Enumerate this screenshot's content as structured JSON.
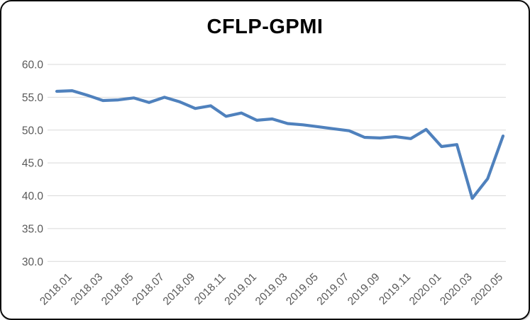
{
  "card": {
    "background": "#ffffff",
    "border_color": "#0a0a0a"
  },
  "chart_data": {
    "type": "line",
    "title": "CFLP-GPMI",
    "xlabel": "",
    "ylabel": "",
    "x": [
      "2018.01",
      "2018.02",
      "2018.03",
      "2018.04",
      "2018.05",
      "2018.06",
      "2018.07",
      "2018.08",
      "2018.09",
      "2018.10",
      "2018.11",
      "2018.12",
      "2019.01",
      "2019.02",
      "2019.03",
      "2019.04",
      "2019.05",
      "2019.06",
      "2019.07",
      "2019.08",
      "2019.09",
      "2019.10",
      "2019.11",
      "2019.12",
      "2020.01",
      "2020.02",
      "2020.03",
      "2020.04",
      "2020.05",
      "2020.06"
    ],
    "x_tick_step": 2,
    "series": [
      {
        "name": "CFLP-GPMI",
        "color": "#4F81BD",
        "values": [
          55.9,
          56.0,
          55.3,
          54.5,
          54.6,
          54.9,
          54.2,
          55.0,
          54.3,
          53.3,
          53.7,
          52.1,
          52.6,
          51.5,
          51.7,
          51.0,
          50.8,
          50.5,
          50.2,
          49.9,
          48.9,
          48.8,
          49.0,
          48.7,
          50.1,
          47.5,
          47.8,
          39.6,
          42.6,
          49.1
        ]
      }
    ],
    "ylim": [
      30,
      60
    ],
    "y_ticks": [
      60,
      55,
      50,
      45,
      40,
      35,
      30
    ],
    "y_tick_decimals": 1,
    "grid": "horizontal",
    "grid_color": "#d9d9d9",
    "tick_label_color": "#595959",
    "legend": "none"
  }
}
